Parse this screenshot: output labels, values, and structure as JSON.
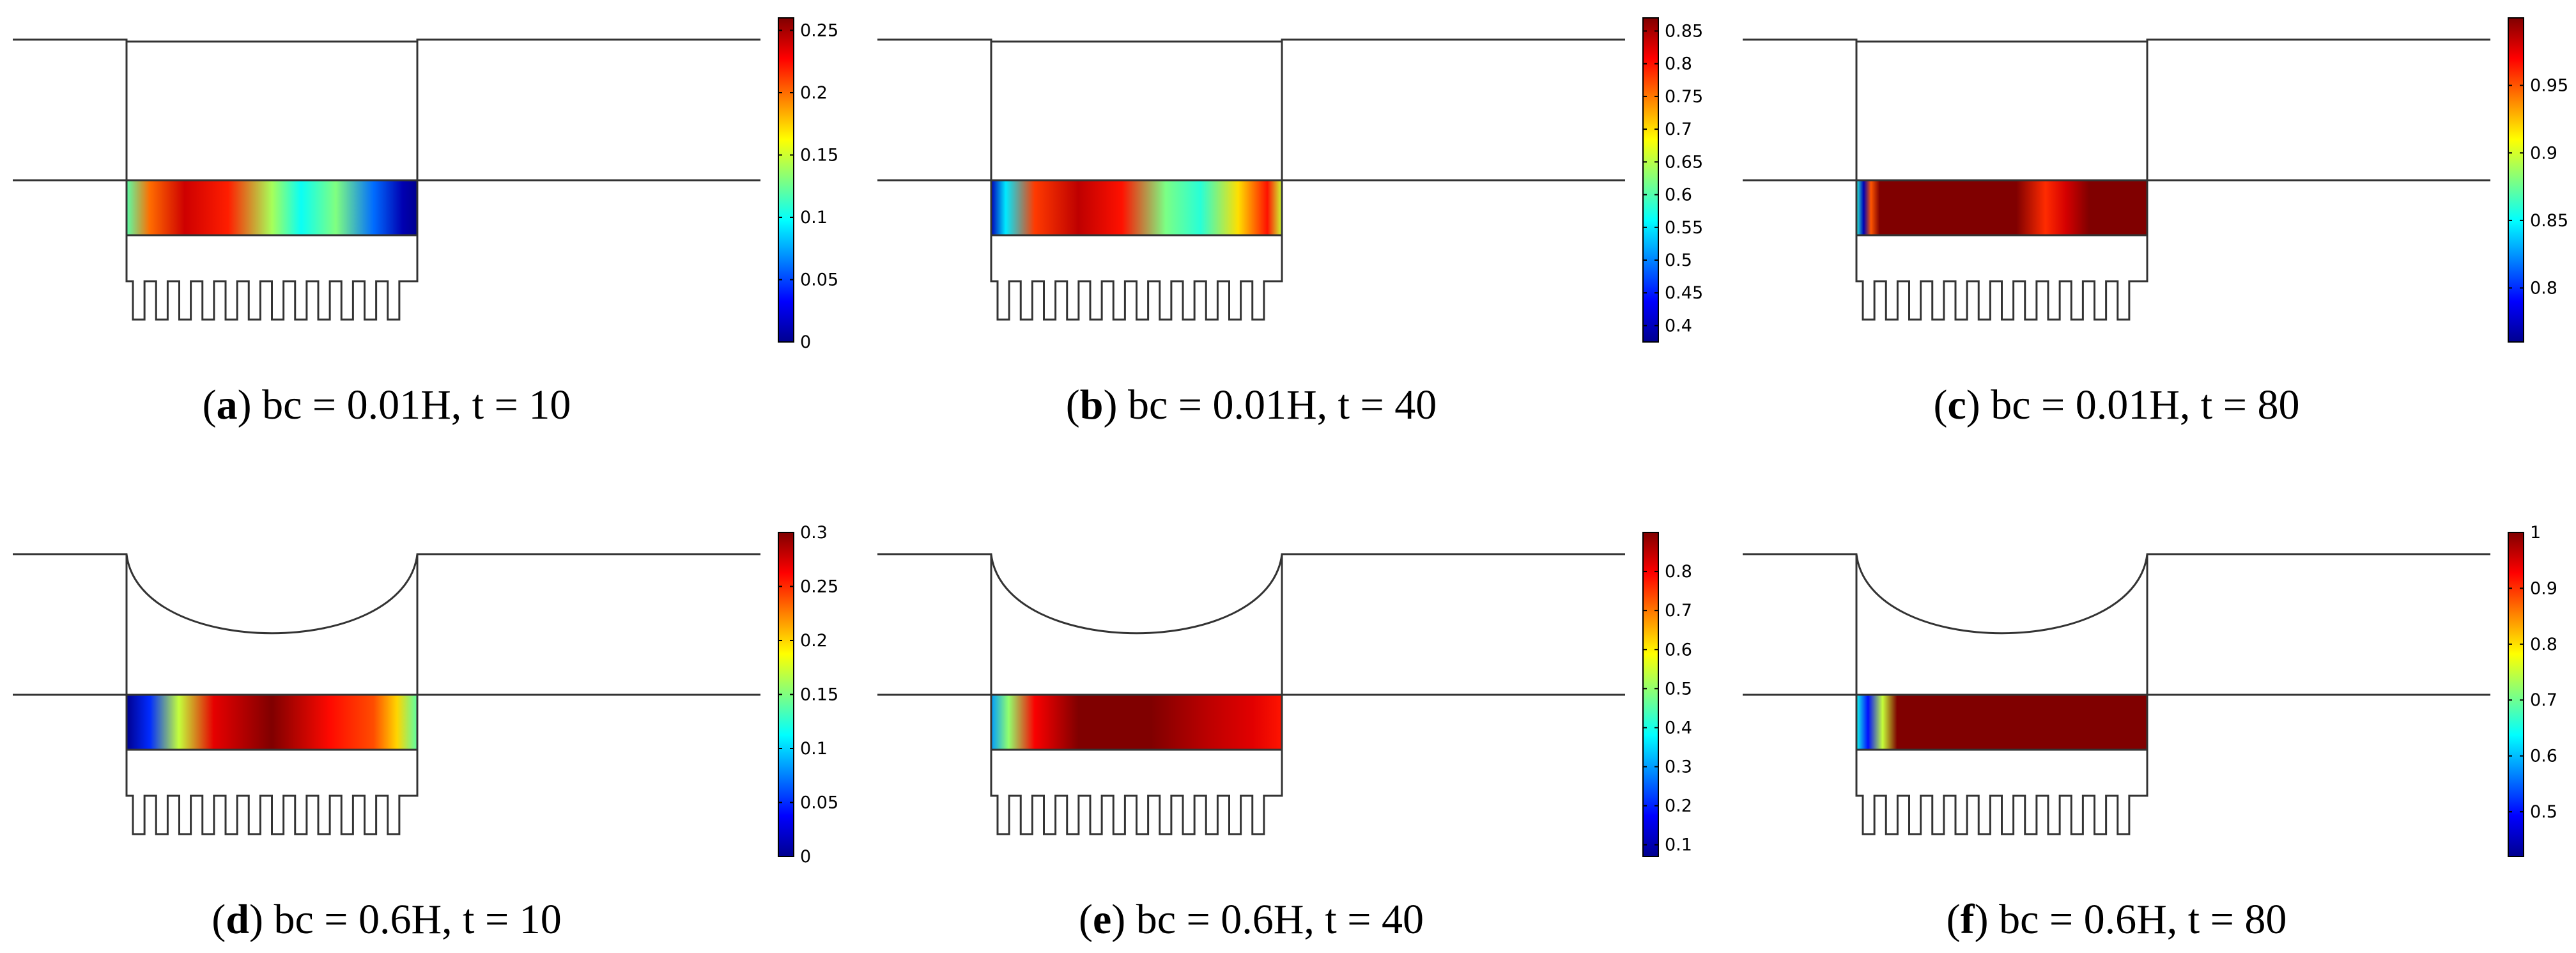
{
  "figure": {
    "jet_colors": [
      "#00008f",
      "#0000ff",
      "#0080ff",
      "#00ffff",
      "#80ff80",
      "#ffff00",
      "#ff8000",
      "#ff0000",
      "#800000"
    ],
    "panels": [
      {
        "id": "a",
        "letter": "a",
        "caption": "bc = 0.01H, t = 10",
        "cavity": "flat",
        "colorbar": {
          "min": 0,
          "max": 0.26,
          "ticks": [
            "0",
            "0.05",
            "0.1",
            "0.15",
            "0.2",
            "0.25"
          ],
          "tick_values": [
            0,
            0.05,
            0.1,
            0.15,
            0.2,
            0.25
          ]
        },
        "field": [
          {
            "pos": 0.0,
            "value": 0.12
          },
          {
            "pos": 0.08,
            "value": 0.2
          },
          {
            "pos": 0.2,
            "value": 0.24
          },
          {
            "pos": 0.35,
            "value": 0.22
          },
          {
            "pos": 0.5,
            "value": 0.14
          },
          {
            "pos": 0.6,
            "value": 0.1
          },
          {
            "pos": 0.72,
            "value": 0.13
          },
          {
            "pos": 0.85,
            "value": 0.06
          },
          {
            "pos": 0.95,
            "value": 0.01
          },
          {
            "pos": 1.0,
            "value": 0.0
          }
        ]
      },
      {
        "id": "b",
        "letter": "b",
        "caption": "bc = 0.01H, t = 40",
        "cavity": "flat",
        "colorbar": {
          "min": 0.375,
          "max": 0.87,
          "ticks": [
            "0.4",
            "0.45",
            "0.5",
            "0.55",
            "0.6",
            "0.65",
            "0.7",
            "0.75",
            "0.8",
            "0.85"
          ],
          "tick_values": [
            0.4,
            0.45,
            0.5,
            0.55,
            0.6,
            0.65,
            0.7,
            0.75,
            0.8,
            0.85
          ]
        },
        "field": [
          {
            "pos": 0.0,
            "value": 0.4
          },
          {
            "pos": 0.05,
            "value": 0.55
          },
          {
            "pos": 0.15,
            "value": 0.78
          },
          {
            "pos": 0.3,
            "value": 0.84
          },
          {
            "pos": 0.45,
            "value": 0.8
          },
          {
            "pos": 0.6,
            "value": 0.62
          },
          {
            "pos": 0.72,
            "value": 0.58
          },
          {
            "pos": 0.85,
            "value": 0.7
          },
          {
            "pos": 0.95,
            "value": 0.8
          },
          {
            "pos": 1.0,
            "value": 0.66
          }
        ]
      },
      {
        "id": "c",
        "letter": "c",
        "caption": "bc = 0.01H, t = 80",
        "cavity": "flat",
        "colorbar": {
          "min": 0.76,
          "max": 1.0,
          "ticks": [
            "0.8",
            "0.85",
            "0.9",
            "0.95"
          ],
          "tick_values": [
            0.8,
            0.85,
            0.9,
            0.95
          ]
        },
        "field": [
          {
            "pos": 0.0,
            "value": 0.86
          },
          {
            "pos": 0.025,
            "value": 0.77
          },
          {
            "pos": 0.05,
            "value": 0.95
          },
          {
            "pos": 0.08,
            "value": 1.0
          },
          {
            "pos": 0.55,
            "value": 1.0
          },
          {
            "pos": 0.65,
            "value": 0.96
          },
          {
            "pos": 0.72,
            "value": 0.98
          },
          {
            "pos": 0.8,
            "value": 1.0
          },
          {
            "pos": 1.0,
            "value": 1.0
          }
        ]
      },
      {
        "id": "d",
        "letter": "d",
        "caption": "bc = 0.6H, t = 10",
        "cavity": "curved",
        "colorbar": {
          "min": 0,
          "max": 0.3,
          "ticks": [
            "0",
            "0.05",
            "0.1",
            "0.15",
            "0.2",
            "0.25",
            "0.3"
          ],
          "tick_values": [
            0,
            0.05,
            0.1,
            0.15,
            0.2,
            0.25,
            0.3
          ]
        },
        "field": [
          {
            "pos": 0.0,
            "value": 0.0
          },
          {
            "pos": 0.08,
            "value": 0.05
          },
          {
            "pos": 0.18,
            "value": 0.17
          },
          {
            "pos": 0.3,
            "value": 0.27
          },
          {
            "pos": 0.5,
            "value": 0.3
          },
          {
            "pos": 0.7,
            "value": 0.26
          },
          {
            "pos": 0.85,
            "value": 0.24
          },
          {
            "pos": 0.93,
            "value": 0.2
          },
          {
            "pos": 1.0,
            "value": 0.14
          }
        ]
      },
      {
        "id": "e",
        "letter": "e",
        "caption": "bc = 0.6H, t = 40",
        "cavity": "curved",
        "colorbar": {
          "min": 0.07,
          "max": 0.9,
          "ticks": [
            "0.1",
            "0.2",
            "0.3",
            "0.4",
            "0.5",
            "0.6",
            "0.7",
            "0.8"
          ],
          "tick_values": [
            0.1,
            0.2,
            0.3,
            0.4,
            0.5,
            0.6,
            0.7,
            0.8
          ]
        },
        "field": [
          {
            "pos": 0.0,
            "value": 0.3
          },
          {
            "pos": 0.06,
            "value": 0.5
          },
          {
            "pos": 0.15,
            "value": 0.8
          },
          {
            "pos": 0.3,
            "value": 0.9
          },
          {
            "pos": 0.55,
            "value": 0.9
          },
          {
            "pos": 0.75,
            "value": 0.85
          },
          {
            "pos": 0.9,
            "value": 0.82
          },
          {
            "pos": 1.0,
            "value": 0.78
          }
        ]
      },
      {
        "id": "f",
        "letter": "f",
        "caption": "bc = 0.6H, t = 80",
        "cavity": "curved",
        "colorbar": {
          "min": 0.42,
          "max": 1.0,
          "ticks": [
            "0.5",
            "0.6",
            "0.7",
            "0.8",
            "0.9",
            "1"
          ],
          "tick_values": [
            0.5,
            0.6,
            0.7,
            0.8,
            0.9,
            1.0
          ]
        },
        "field": [
          {
            "pos": 0.0,
            "value": 0.65
          },
          {
            "pos": 0.04,
            "value": 0.5
          },
          {
            "pos": 0.09,
            "value": 0.75
          },
          {
            "pos": 0.14,
            "value": 1.0
          },
          {
            "pos": 1.0,
            "value": 1.0
          }
        ]
      }
    ]
  }
}
